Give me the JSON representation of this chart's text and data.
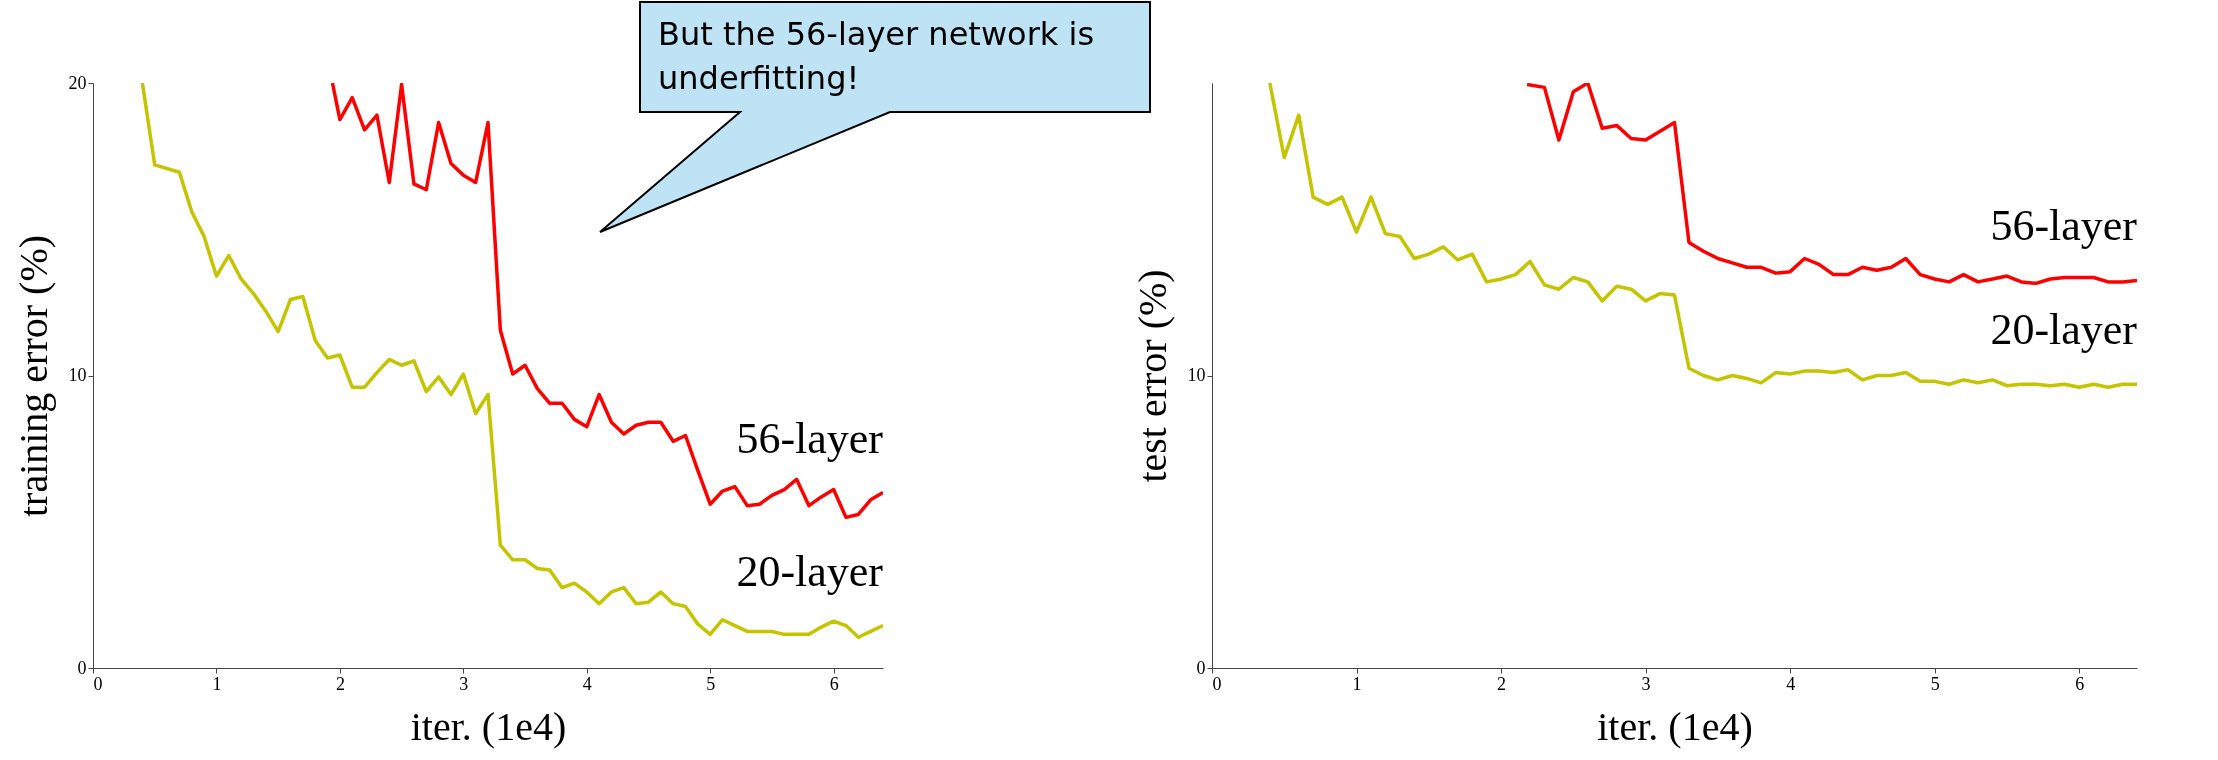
{
  "chart_data": [
    {
      "type": "line",
      "xlabel": "iter. (1e4)",
      "ylabel": "training error (%)",
      "xlim": [
        0,
        6.4
      ],
      "xticks": [
        0,
        1,
        2,
        3,
        4,
        5,
        6
      ],
      "ylim": [
        0,
        20
      ],
      "yticks": [
        0,
        10,
        20
      ],
      "annotations": [
        "But the 56-layer network is underfitting!"
      ],
      "series": [
        {
          "name": "56-layer",
          "color": "#ff0000",
          "x": [
            1.94,
            2.0,
            2.1,
            2.2,
            2.3,
            2.4,
            2.5,
            2.6,
            2.7,
            2.8,
            2.9,
            3.0,
            3.1,
            3.2,
            3.3,
            3.4,
            3.5,
            3.6,
            3.7,
            3.8,
            3.9,
            4.0,
            4.1,
            4.2,
            4.3,
            4.4,
            4.5,
            4.6,
            4.7,
            4.8,
            4.9,
            5.0,
            5.1,
            5.2,
            5.3,
            5.4,
            5.5,
            5.6,
            5.7,
            5.8,
            5.9,
            6.0,
            6.1,
            6.2,
            6.3,
            6.4
          ],
          "values": [
            20,
            18.75,
            19.5,
            18.4,
            18.9,
            16.6,
            19.95,
            16.55,
            16.35,
            18.65,
            17.25,
            16.85,
            16.6,
            18.65,
            11.55,
            10.05,
            10.35,
            9.55,
            9.05,
            9.05,
            8.5,
            8.25,
            9.35,
            8.4,
            8.0,
            8.3,
            8.4,
            8.4,
            7.75,
            7.95,
            6.75,
            5.6,
            6.05,
            6.2,
            5.55,
            5.6,
            5.9,
            6.1,
            6.45,
            5.55,
            5.85,
            6.1,
            5.15,
            5.25,
            5.75,
            6.0
          ]
        },
        {
          "name": "20-layer",
          "color": "#c4c400",
          "x": [
            0.4,
            0.5,
            0.7,
            0.8,
            0.9,
            1.0,
            1.1,
            1.2,
            1.3,
            1.4,
            1.5,
            1.6,
            1.7,
            1.8,
            1.9,
            2.0,
            2.1,
            2.2,
            2.3,
            2.4,
            2.5,
            2.6,
            2.7,
            2.8,
            2.9,
            3.0,
            3.1,
            3.2,
            3.3,
            3.4,
            3.5,
            3.6,
            3.7,
            3.8,
            3.9,
            4.0,
            4.1,
            4.2,
            4.3,
            4.4,
            4.5,
            4.6,
            4.7,
            4.8,
            4.9,
            5.0,
            5.1,
            5.2,
            5.3,
            5.4,
            5.5,
            5.6,
            5.7,
            5.8,
            5.9,
            6.0,
            6.1,
            6.2,
            6.3,
            6.4
          ],
          "values": [
            20,
            17.2,
            16.95,
            15.6,
            14.75,
            13.4,
            14.1,
            13.3,
            12.8,
            12.2,
            11.5,
            12.6,
            12.7,
            11.2,
            10.6,
            10.7,
            9.6,
            9.6,
            10.1,
            10.55,
            10.35,
            10.5,
            9.45,
            9.95,
            9.35,
            10.05,
            8.7,
            9.35,
            4.2,
            3.7,
            3.7,
            3.4,
            3.35,
            2.75,
            2.9,
            2.6,
            2.2,
            2.6,
            2.75,
            2.2,
            2.25,
            2.6,
            2.2,
            2.1,
            1.5,
            1.15,
            1.65,
            1.45,
            1.25,
            1.25,
            1.25,
            1.15,
            1.15,
            1.15,
            1.4,
            1.6,
            1.45,
            1.05,
            1.25,
            1.45
          ]
        }
      ]
    },
    {
      "type": "line",
      "xlabel": "iter. (1e4)",
      "ylabel": "test error (%)",
      "xlim": [
        0,
        6.4
      ],
      "xticks": [
        0,
        1,
        2,
        3,
        4,
        5,
        6
      ],
      "ylim": [
        0,
        20
      ],
      "yticks": [
        0,
        10
      ],
      "series": [
        {
          "name": "56-layer",
          "color": "#ff0000",
          "x": [
            2.18,
            2.3,
            2.4,
            2.5,
            2.6,
            2.7,
            2.8,
            2.9,
            3.0,
            3.1,
            3.2,
            3.3,
            3.4,
            3.5,
            3.6,
            3.7,
            3.8,
            3.9,
            4.0,
            4.1,
            4.2,
            4.3,
            4.4,
            4.5,
            4.6,
            4.7,
            4.8,
            4.9,
            5.0,
            5.1,
            5.2,
            5.3,
            5.4,
            5.5,
            5.6,
            5.7,
            5.8,
            5.9,
            6.0,
            6.1,
            6.2,
            6.3,
            6.4
          ],
          "values": [
            19.95,
            19.85,
            18.05,
            19.7,
            20,
            18.45,
            18.55,
            18.1,
            18.05,
            18.35,
            18.65,
            14.55,
            14.25,
            14.0,
            13.85,
            13.7,
            13.7,
            13.5,
            13.55,
            14.0,
            13.8,
            13.45,
            13.45,
            13.7,
            13.6,
            13.7,
            14.0,
            13.45,
            13.3,
            13.2,
            13.45,
            13.2,
            13.3,
            13.4,
            13.2,
            13.15,
            13.3,
            13.35,
            13.35,
            13.35,
            13.2,
            13.2,
            13.25
          ]
        },
        {
          "name": "20-layer",
          "color": "#c4c400",
          "x": [
            0.4,
            0.5,
            0.6,
            0.7,
            0.8,
            0.9,
            1.0,
            1.1,
            1.2,
            1.3,
            1.4,
            1.5,
            1.6,
            1.7,
            1.8,
            1.9,
            2.0,
            2.1,
            2.2,
            2.3,
            2.4,
            2.5,
            2.6,
            2.7,
            2.8,
            2.9,
            3.0,
            3.1,
            3.2,
            3.3,
            3.4,
            3.5,
            3.6,
            3.7,
            3.8,
            3.9,
            4.0,
            4.1,
            4.2,
            4.3,
            4.4,
            4.5,
            4.6,
            4.7,
            4.8,
            4.9,
            5.0,
            5.1,
            5.2,
            5.3,
            5.4,
            5.5,
            5.6,
            5.7,
            5.8,
            5.9,
            6.0,
            6.1,
            6.2,
            6.3,
            6.4
          ],
          "values": [
            20,
            17.45,
            18.9,
            16.1,
            15.85,
            16.1,
            14.9,
            16.1,
            14.85,
            14.75,
            14.0,
            14.15,
            14.4,
            13.95,
            14.15,
            13.2,
            13.3,
            13.45,
            13.9,
            13.1,
            12.95,
            13.35,
            13.2,
            12.55,
            13.05,
            12.95,
            12.55,
            12.8,
            12.75,
            10.25,
            10.0,
            9.85,
            10.0,
            9.9,
            9.75,
            10.1,
            10.05,
            10.15,
            10.15,
            10.1,
            10.2,
            9.85,
            10.0,
            10.0,
            10.1,
            9.8,
            9.8,
            9.7,
            9.85,
            9.75,
            9.85,
            9.65,
            9.7,
            9.7,
            9.65,
            9.7,
            9.6,
            9.7,
            9.6,
            9.7,
            9.7
          ]
        }
      ]
    }
  ]
}
